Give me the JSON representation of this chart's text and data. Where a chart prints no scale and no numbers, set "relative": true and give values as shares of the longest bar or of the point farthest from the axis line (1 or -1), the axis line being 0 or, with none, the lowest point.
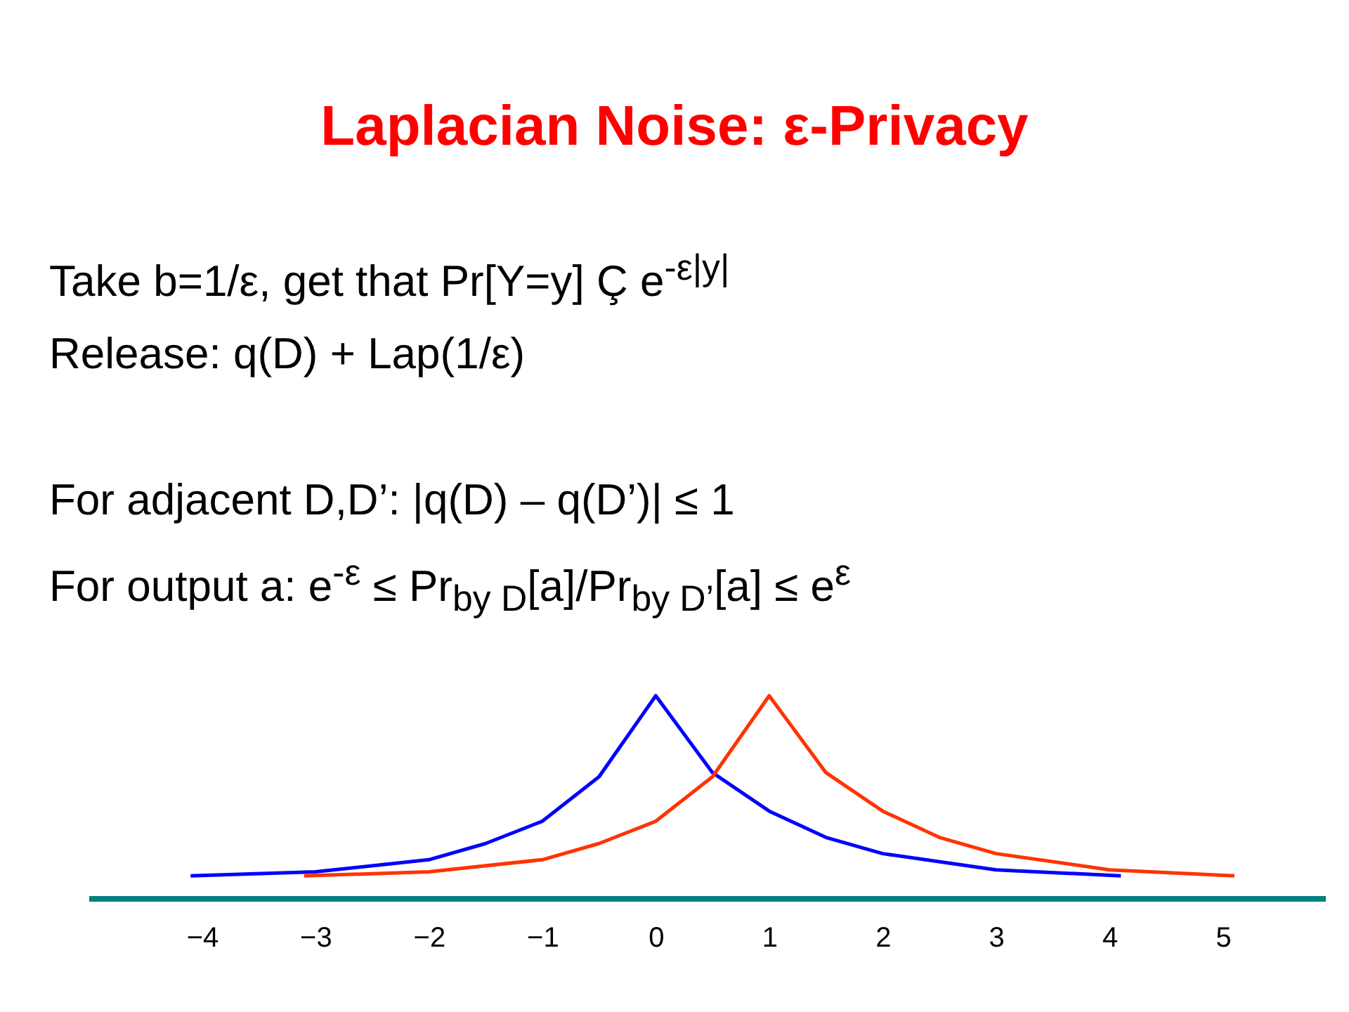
{
  "chart_data": {
    "type": "line",
    "title": "Laplacian Noise: ε-Privacy",
    "relative": true,
    "annotations": [
      "Take b=1/ε, get that Pr[Y=y] Ç e$^{-ε|y|}$",
      "Release: q(D) + Lap(1/ε)",
      "For adjacent D,D’: |q(D) – q(D’)| ≤ 1",
      "For output a: e$^{-ε}$ ≤ Pr$_{by D}$[a]/Pr$_{by D’}$[a] ≤ e$^{ε}$"
    ],
    "xlim": [
      -5,
      5.9
    ],
    "xticks": [
      -4,
      -3,
      -2,
      -1,
      0,
      1,
      2,
      3,
      4,
      5
    ],
    "series": [
      {
        "color": "#0000ff",
        "x": [
          -4.1,
          -3,
          -2,
          -1.5,
          -1,
          -0.5,
          0,
          0.5,
          1,
          1.5,
          2,
          3,
          4.1
        ],
        "values": [
          0.11,
          0.13,
          0.19,
          0.27,
          0.38,
          0.6,
          1,
          0.62,
          0.43,
          0.3,
          0.22,
          0.14,
          0.11
        ]
      },
      {
        "color": "#ff3300",
        "x": [
          -3.1,
          -2,
          -1,
          -0.5,
          0,
          0.5,
          1,
          1.5,
          2,
          2.5,
          3,
          4,
          5.1
        ],
        "values": [
          0.11,
          0.13,
          0.19,
          0.27,
          0.38,
          0.6,
          1,
          0.62,
          0.43,
          0.3,
          0.22,
          0.14,
          0.11
        ]
      }
    ]
  }
}
